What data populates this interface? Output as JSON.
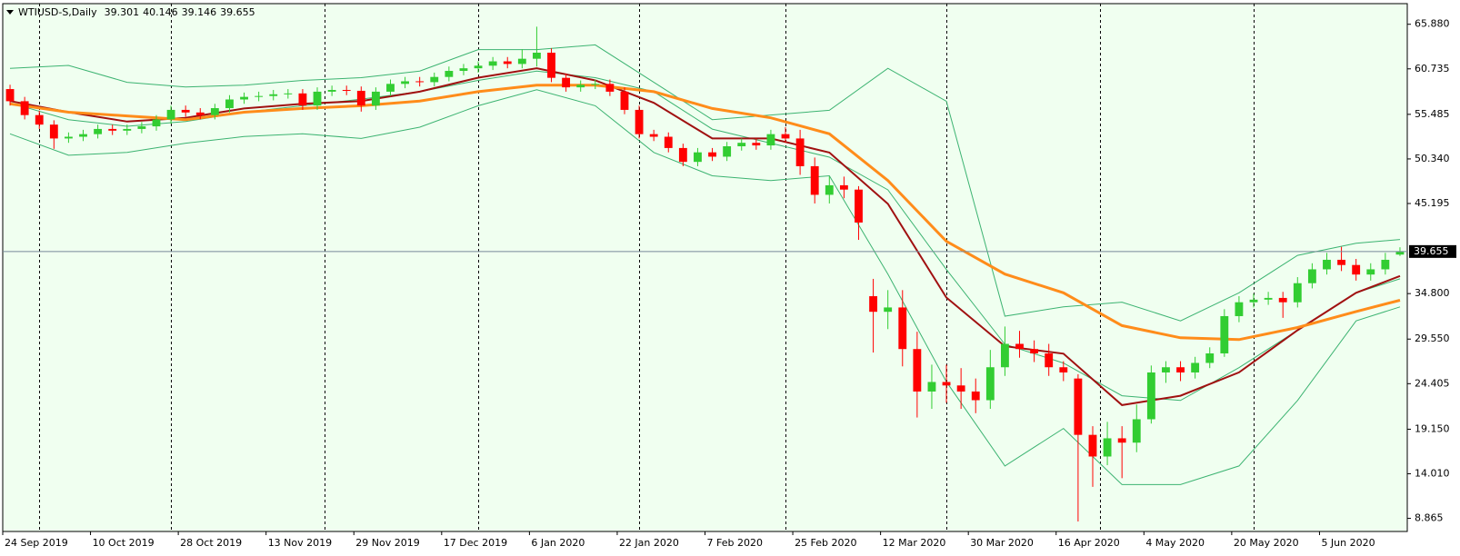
{
  "chart_data": {
    "type": "candlestick",
    "title": "WTIUSD-S,Daily",
    "open": [
      58.4,
      57.0,
      55.4,
      54.3,
      52.7,
      52.9,
      53.2,
      53.8,
      53.6,
      53.8,
      54.1,
      54.9,
      56.0,
      55.7,
      55.4,
      56.2,
      57.2,
      57.5,
      57.6,
      57.8,
      57.9,
      56.5,
      58.1,
      58.3,
      58.2,
      56.5,
      58.1,
      59.0,
      59.3,
      59.2,
      59.8,
      60.5,
      60.8,
      61.1,
      61.6,
      61.3,
      61.9,
      62.6,
      59.7,
      58.6,
      58.9,
      59.0,
      58.1,
      56.0,
      53.2,
      52.9,
      51.6,
      50.0,
      51.1,
      50.6,
      51.8,
      52.2,
      51.9,
      53.2,
      52.7,
      49.5,
      46.2,
      47.3,
      46.8,
      34.5,
      32.7,
      33.2,
      28.4,
      23.5,
      24.6,
      24.2,
      23.5,
      22.5,
      26.3,
      29.0,
      28.4,
      27.9,
      26.3,
      25.0,
      18.5,
      16.0,
      18.1,
      17.6,
      20.3,
      25.7,
      26.3,
      25.7,
      26.8,
      27.9,
      32.2,
      33.8,
      34.1,
      34.3,
      33.8,
      36.0,
      37.6,
      38.7,
      38.1,
      37.0,
      37.6,
      39.301
    ],
    "high": [
      58.9,
      57.5,
      55.9,
      54.8,
      53.4,
      53.7,
      54.3,
      54.3,
      54.3,
      54.6,
      55.4,
      56.5,
      56.5,
      56.2,
      56.7,
      57.7,
      58.0,
      58.1,
      58.3,
      58.4,
      58.4,
      58.6,
      58.8,
      58.8,
      58.7,
      58.6,
      59.5,
      59.8,
      59.8,
      60.3,
      61.0,
      61.3,
      61.6,
      62.1,
      62.1,
      63.0,
      65.6,
      63.1,
      60.2,
      59.4,
      59.5,
      59.5,
      58.6,
      56.5,
      53.7,
      53.4,
      52.1,
      51.6,
      51.6,
      52.3,
      52.7,
      52.7,
      53.7,
      54.0,
      53.7,
      50.5,
      48.3,
      48.3,
      47.2,
      36.5,
      35.2,
      35.2,
      30.4,
      26.6,
      26.6,
      26.2,
      25.0,
      28.3,
      31.0,
      30.5,
      29.4,
      29.0,
      27.0,
      25.5,
      19.5,
      20.0,
      19.5,
      22.0,
      26.5,
      27.0,
      27.0,
      27.5,
      28.6,
      33.0,
      34.5,
      34.8,
      35.0,
      35.0,
      36.7,
      38.3,
      39.5,
      40.2,
      38.8,
      38.3,
      39.5,
      40.146
    ],
    "low": [
      56.5,
      54.9,
      53.8,
      51.5,
      52.2,
      52.4,
      52.7,
      53.1,
      53.1,
      53.3,
      53.6,
      54.4,
      55.2,
      54.9,
      54.9,
      55.7,
      56.7,
      57.0,
      57.1,
      57.3,
      56.0,
      56.0,
      57.6,
      57.7,
      55.8,
      56.0,
      57.6,
      58.5,
      58.7,
      58.7,
      59.3,
      60.0,
      60.3,
      60.6,
      60.8,
      60.8,
      61.0,
      59.2,
      58.1,
      58.1,
      58.4,
      57.6,
      55.5,
      52.7,
      52.4,
      51.1,
      49.5,
      49.5,
      50.1,
      50.1,
      51.3,
      51.4,
      51.4,
      52.2,
      48.5,
      45.2,
      45.2,
      45.8,
      41.0,
      28.0,
      30.7,
      26.4,
      20.5,
      21.5,
      22.2,
      21.5,
      21.0,
      21.5,
      25.3,
      27.4,
      26.9,
      25.3,
      24.7,
      8.5,
      12.5,
      15.0,
      13.5,
      16.5,
      19.8,
      24.5,
      24.7,
      25.0,
      26.2,
      27.5,
      31.5,
      33.2,
      33.5,
      32.0,
      33.2,
      35.4,
      37.0,
      37.4,
      36.3,
      36.3,
      37.0,
      39.146
    ],
    "close": [
      57.0,
      55.4,
      54.3,
      52.7,
      52.9,
      53.2,
      53.8,
      53.6,
      53.8,
      54.1,
      54.9,
      56.0,
      55.7,
      55.4,
      56.2,
      57.2,
      57.5,
      57.6,
      57.8,
      57.9,
      56.5,
      58.1,
      58.3,
      58.2,
      56.5,
      58.1,
      59.0,
      59.3,
      59.2,
      59.8,
      60.5,
      60.8,
      61.1,
      61.6,
      61.3,
      61.9,
      62.6,
      59.7,
      58.6,
      58.9,
      59.0,
      58.1,
      56.0,
      53.2,
      52.9,
      51.6,
      50.0,
      51.1,
      50.6,
      51.8,
      52.2,
      51.9,
      53.2,
      52.7,
      49.5,
      46.2,
      47.3,
      46.8,
      43.0,
      32.7,
      33.2,
      28.4,
      23.5,
      24.6,
      24.2,
      23.5,
      22.5,
      26.3,
      29.0,
      28.4,
      27.9,
      26.3,
      25.7,
      18.5,
      16.0,
      18.1,
      17.6,
      20.3,
      25.7,
      26.3,
      25.7,
      26.8,
      27.9,
      32.2,
      33.8,
      34.1,
      34.3,
      33.8,
      36.0,
      37.6,
      38.7,
      38.1,
      37.0,
      37.6,
      38.7,
      39.655
    ],
    "up_color": "#32cd32",
    "down_color": "#ff0000",
    "xlim": [
      0,
      96
    ],
    "xticks": [
      {
        "value": 0,
        "label": "24 Sep 2019"
      },
      {
        "value": 6,
        "label": "10 Oct 2019"
      },
      {
        "value": 12,
        "label": "28 Oct 2019"
      },
      {
        "value": 18,
        "label": "13 Nov 2019"
      },
      {
        "value": 24,
        "label": "29 Nov 2019"
      },
      {
        "value": 30,
        "label": "17 Dec 2019"
      },
      {
        "value": 36,
        "label": "6 Jan 2020"
      },
      {
        "value": 42,
        "label": "22 Jan 2020"
      },
      {
        "value": 48,
        "label": "7 Feb 2020"
      },
      {
        "value": 54,
        "label": "25 Feb 2020"
      },
      {
        "value": 60,
        "label": "12 Mar 2020"
      },
      {
        "value": 66,
        "label": "30 Mar 2020"
      },
      {
        "value": 72,
        "label": "16 Apr 2020"
      },
      {
        "value": 78,
        "label": "4 May 2020"
      },
      {
        "value": 84,
        "label": "20 May 2020"
      },
      {
        "value": 90,
        "label": "5 Jun 2020"
      }
    ],
    "ylim": [
      7.35,
      68.26
    ],
    "yticks": [
      {
        "value": 65.88,
        "label": "65.880"
      },
      60.735,
      55.485,
      {
        "value": 50.34,
        "label": "50.340"
      },
      45.195,
      {
        "value": 34.8,
        "label": "34.800"
      },
      {
        "value": 29.55,
        "label": "29.550"
      },
      24.405,
      {
        "value": 19.15,
        "label": "19.150"
      },
      {
        "value": 14.01,
        "label": "14.010"
      },
      8.865
    ],
    "grid": false,
    "overlays": [
      {
        "color": "#3cb371",
        "width": 1,
        "x": [
          0,
          4,
          8,
          12,
          16,
          20,
          24,
          28,
          32,
          36,
          40,
          44,
          48,
          52,
          56,
          60,
          64,
          68,
          72,
          76,
          80,
          84,
          88,
          92,
          95
        ],
        "values": [
          60.8,
          61.13,
          59.18,
          58.64,
          58.86,
          59.4,
          59.72,
          60.48,
          62.96,
          62.96,
          63.5,
          59.18,
          54.87,
          55.41,
          55.95,
          60.8,
          57.0,
          32.2,
          33.27,
          33.81,
          31.65,
          34.89,
          39.21,
          40.61,
          41.04
        ]
      },
      {
        "color": "#3cb371",
        "width": 1,
        "x": [
          0,
          4,
          8,
          12,
          16,
          20,
          24,
          28,
          32,
          36,
          40,
          44,
          48,
          52,
          56,
          60,
          64,
          68,
          72,
          76,
          80,
          84,
          88,
          92,
          95
        ],
        "values": [
          56.81,
          54.87,
          54.11,
          54.65,
          55.73,
          56.48,
          57.24,
          58.1,
          59.4,
          60.48,
          59.72,
          58.1,
          53.78,
          52.16,
          50.54,
          46.77,
          37.59,
          28.95,
          26.79,
          23.01,
          22.47,
          26.25,
          30.57,
          34.89,
          36.51
        ]
      },
      {
        "color": "#3cb371",
        "width": 1,
        "x": [
          0,
          4,
          8,
          12,
          16,
          20,
          24,
          28,
          32,
          36,
          40,
          44,
          48,
          52,
          56,
          60,
          64,
          68,
          72,
          76,
          80,
          84,
          88,
          92,
          95
        ],
        "values": [
          53.24,
          50.76,
          51.09,
          52.16,
          52.92,
          53.24,
          52.7,
          54.0,
          56.48,
          58.32,
          56.48,
          51.09,
          48.39,
          47.85,
          48.39,
          37.05,
          24.63,
          14.91,
          19.24,
          12.76,
          12.76,
          14.91,
          22.47,
          31.65,
          33.27
        ]
      },
      {
        "color": "#a01010",
        "width": 2,
        "x": [
          0,
          4,
          8,
          12,
          16,
          20,
          24,
          28,
          32,
          36,
          40,
          44,
          48,
          52,
          56,
          60,
          64,
          68,
          72,
          76,
          80,
          84,
          88,
          92,
          95
        ],
        "values": [
          57.02,
          55.73,
          54.65,
          55.08,
          56.16,
          56.7,
          57.02,
          58.1,
          59.72,
          60.8,
          59.4,
          56.81,
          52.7,
          52.7,
          51.08,
          45.15,
          34.35,
          28.73,
          27.87,
          21.93,
          23.01,
          25.71,
          30.57,
          34.89,
          36.83
        ]
      },
      {
        "color": "#ff8c1a",
        "width": 3,
        "x": [
          0,
          4,
          8,
          12,
          16,
          20,
          24,
          28,
          32,
          36,
          40,
          44,
          48,
          52,
          56,
          60,
          64,
          68,
          72,
          76,
          80,
          84,
          88,
          92,
          95
        ],
        "values": [
          56.7,
          55.73,
          55.3,
          54.87,
          55.73,
          56.16,
          56.48,
          57.02,
          58.1,
          58.86,
          58.86,
          58.1,
          56.16,
          55.08,
          53.24,
          47.85,
          40.83,
          37.05,
          34.89,
          31.11,
          29.7,
          29.49,
          30.89,
          32.73,
          34.03
        ]
      }
    ]
  }
}
